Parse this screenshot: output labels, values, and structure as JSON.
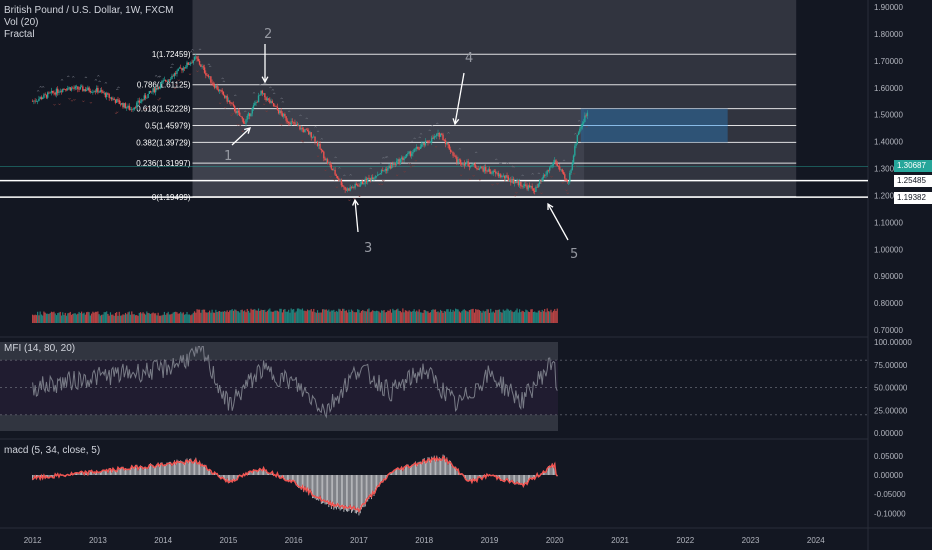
{
  "legend": {
    "symbol": "British Pound / U.S. Dollar, 1W, FXCM",
    "vol": "Vol (20)",
    "fractal": "Fractal",
    "mfi": "MFI (14, 80, 20)",
    "macd": "macd (5, 34, close, 5)"
  },
  "price_axis": [
    "1.90000",
    "1.80000",
    "1.70000",
    "1.60000",
    "1.50000",
    "1.40000",
    "1.30000",
    "1.20000",
    "1.10000",
    "1.00000",
    "0.90000",
    "0.80000",
    "0.70000"
  ],
  "mfi_axis": [
    "100.00000",
    "75.00000",
    "50.00000",
    "25.00000",
    "0.00000"
  ],
  "macd_axis": [
    "0.05000",
    "0.00000",
    "-0.05000",
    "-0.10000"
  ],
  "time_axis": [
    "2012",
    "2013",
    "2014",
    "2015",
    "2016",
    "2017",
    "2018",
    "2019",
    "2020",
    "2021",
    "2022",
    "2023",
    "2024"
  ],
  "price_tags": {
    "last": {
      "value": "1.30687",
      "color": "#26a69a"
    },
    "white1": {
      "value": "1.25485",
      "color": "#ffffff"
    },
    "white2": {
      "value": "1.19382",
      "color": "#ffffff"
    }
  },
  "fib_levels": [
    {
      "ratio": "1",
      "price": "1.72459"
    },
    {
      "ratio": "0.786",
      "price": "1.61125"
    },
    {
      "ratio": "0.618",
      "price": "1.52228"
    },
    {
      "ratio": "0.5",
      "price": "1.45979"
    },
    {
      "ratio": "0.382",
      "price": "1.39729"
    },
    {
      "ratio": "0.236",
      "price": "1.31997"
    },
    {
      "ratio": "0",
      "price": "1.19499"
    }
  ],
  "wave_labels": [
    "1",
    "2",
    "3",
    "4",
    "5"
  ],
  "colors": {
    "background": "#131722",
    "up": "#26a69a",
    "down": "#ef5350",
    "fib_zone": "#4a4c57",
    "target_box": "#2e5e8a",
    "macd_line": "#ef5350",
    "mfi_line": "#787b86"
  },
  "chart_data": [
    {
      "type": "line",
      "title": "British Pound / U.S. Dollar, 1W, FXCM",
      "x": [
        2012,
        2012.5,
        2013,
        2013.5,
        2014,
        2014.5,
        2014.75,
        2015,
        2015.25,
        2015.5,
        2015.9,
        2016.3,
        2016.5,
        2016.8,
        2017,
        2017.5,
        2018,
        2018.25,
        2018.5,
        2019,
        2019.4,
        2019.7,
        2020,
        2020.2,
        2020.35,
        2020.5
      ],
      "y": [
        1.55,
        1.6,
        1.59,
        1.52,
        1.62,
        1.71,
        1.62,
        1.55,
        1.47,
        1.58,
        1.48,
        1.42,
        1.33,
        1.22,
        1.24,
        1.31,
        1.39,
        1.43,
        1.33,
        1.29,
        1.25,
        1.22,
        1.33,
        1.24,
        1.43,
        1.51
      ],
      "ylim": [
        0.7,
        1.9
      ],
      "xlim": [
        2011.5,
        2024.8
      ],
      "log_scale": false,
      "grid": false
    },
    {
      "type": "line",
      "title": "MFI (14, 80, 20)",
      "x": [
        2012,
        2013,
        2014,
        2014.6,
        2015,
        2015.5,
        2016,
        2016.5,
        2017,
        2017.5,
        2018,
        2018.5,
        2019,
        2019.5,
        2020
      ],
      "y": [
        50,
        62,
        70,
        90,
        30,
        70,
        55,
        25,
        72,
        45,
        70,
        30,
        65,
        35,
        82
      ],
      "ylim": [
        0,
        100
      ],
      "bands": [
        20,
        80
      ]
    },
    {
      "type": "bar",
      "title": "macd (5, 34, close, 5)",
      "x": [
        2012,
        2013,
        2014,
        2014.5,
        2015,
        2015.5,
        2016,
        2016.5,
        2017,
        2017.5,
        2018,
        2018.3,
        2018.7,
        2019,
        2019.5,
        2020
      ],
      "y": [
        -0.01,
        0.01,
        0.03,
        0.04,
        -0.02,
        0.02,
        -0.02,
        -0.08,
        -0.1,
        0.01,
        0.04,
        0.05,
        -0.02,
        0.0,
        -0.03,
        0.03
      ],
      "ylim": [
        -0.12,
        0.06
      ]
    }
  ]
}
